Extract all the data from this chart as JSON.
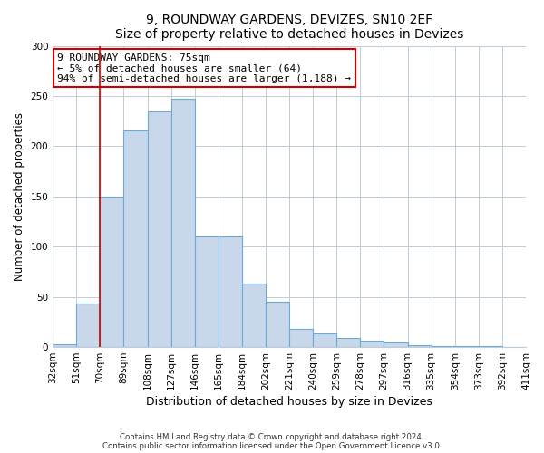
{
  "title": "9, ROUNDWAY GARDENS, DEVIZES, SN10 2EF",
  "subtitle": "Size of property relative to detached houses in Devizes",
  "xlabel": "Distribution of detached houses by size in Devizes",
  "ylabel": "Number of detached properties",
  "bin_labels": [
    "32sqm",
    "51sqm",
    "70sqm",
    "89sqm",
    "108sqm",
    "127sqm",
    "146sqm",
    "165sqm",
    "184sqm",
    "202sqm",
    "221sqm",
    "240sqm",
    "259sqm",
    "278sqm",
    "297sqm",
    "316sqm",
    "335sqm",
    "354sqm",
    "373sqm",
    "392sqm",
    "411sqm"
  ],
  "bar_values": [
    3,
    43,
    150,
    216,
    235,
    247,
    110,
    110,
    63,
    45,
    18,
    14,
    9,
    6,
    5,
    2,
    1,
    1,
    1,
    0
  ],
  "bar_color": "#c8d8ea",
  "bar_edge_color": "#6aaad4",
  "vline_index": 2,
  "vline_color": "#cc0000",
  "ylim": [
    0,
    300
  ],
  "yticks": [
    0,
    50,
    100,
    150,
    200,
    250,
    300
  ],
  "annotation_text": "9 ROUNDWAY GARDENS: 75sqm\n← 5% of detached houses are smaller (64)\n94% of semi-detached houses are larger (1,188) →",
  "annotation_box_color": "#ffffff",
  "annotation_box_edge_color": "#cc0000",
  "footnote1": "Contains HM Land Registry data © Crown copyright and database right 2024.",
  "footnote2": "Contains public sector information licensed under the Open Government Licence v3.0."
}
